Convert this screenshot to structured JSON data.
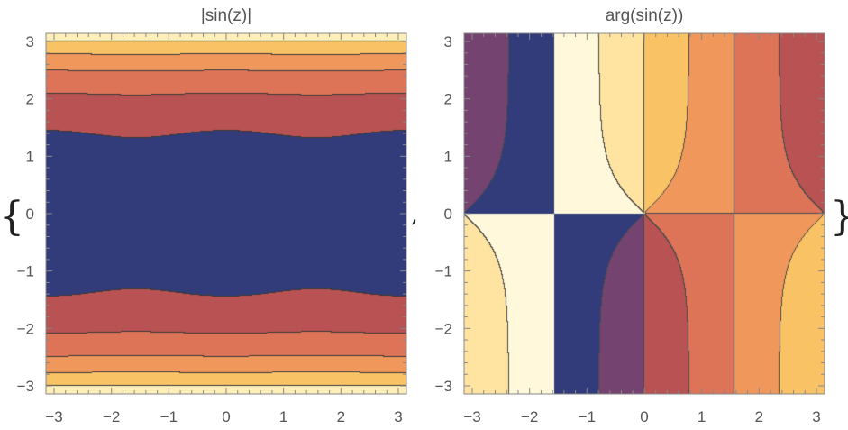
{
  "delimiters": {
    "open": "{",
    "separator": ",",
    "close": "}"
  },
  "chart_data": [
    {
      "type": "contour",
      "title": "|sin(z)|",
      "xlim": [
        -3.1416,
        3.1416
      ],
      "ylim": [
        -3.1416,
        3.1416
      ],
      "x_ticks": [
        -3,
        -2,
        -1,
        0,
        1,
        2,
        3
      ],
      "y_ticks": [
        -3,
        -2,
        -1,
        0,
        1,
        2,
        3
      ],
      "x_tick_labels": [
        "−3",
        "−2",
        "−1",
        "0",
        "1",
        "2",
        "3"
      ],
      "y_tick_labels": [
        "−3",
        "−2",
        "−1",
        "0",
        "1",
        "2",
        "3"
      ],
      "levels": [
        2,
        4,
        6,
        8,
        10
      ],
      "band_colors": [
        "#323c7b",
        "#b95252",
        "#dd7357",
        "#f0975c",
        "#f8c265",
        "#feeeb8"
      ],
      "line_color": "#3a3a3a"
    },
    {
      "type": "contour",
      "title": "arg(sin(z))",
      "xlim": [
        -3.1416,
        3.1416
      ],
      "ylim": [
        -3.1416,
        3.1416
      ],
      "x_ticks": [
        -3,
        -2,
        -1,
        0,
        1,
        2,
        3
      ],
      "y_ticks": [
        -3,
        -2,
        -1,
        0,
        1,
        2,
        3
      ],
      "x_tick_labels": [
        "−3",
        "−2",
        "−1",
        "0",
        "1",
        "2",
        "3"
      ],
      "y_tick_labels": [
        "−3",
        "−2",
        "−1",
        "0",
        "1",
        "2",
        "3"
      ],
      "levels": [
        -2.356,
        -1.571,
        -0.785,
        0,
        0.785,
        1.571,
        2.356
      ],
      "band_colors": [
        "#323c7b",
        "#744370",
        "#b95252",
        "#dd7357",
        "#f0975c",
        "#f8c265",
        "#fee4a0",
        "#fff8da"
      ],
      "line_color": "#4a4a4a"
    }
  ]
}
